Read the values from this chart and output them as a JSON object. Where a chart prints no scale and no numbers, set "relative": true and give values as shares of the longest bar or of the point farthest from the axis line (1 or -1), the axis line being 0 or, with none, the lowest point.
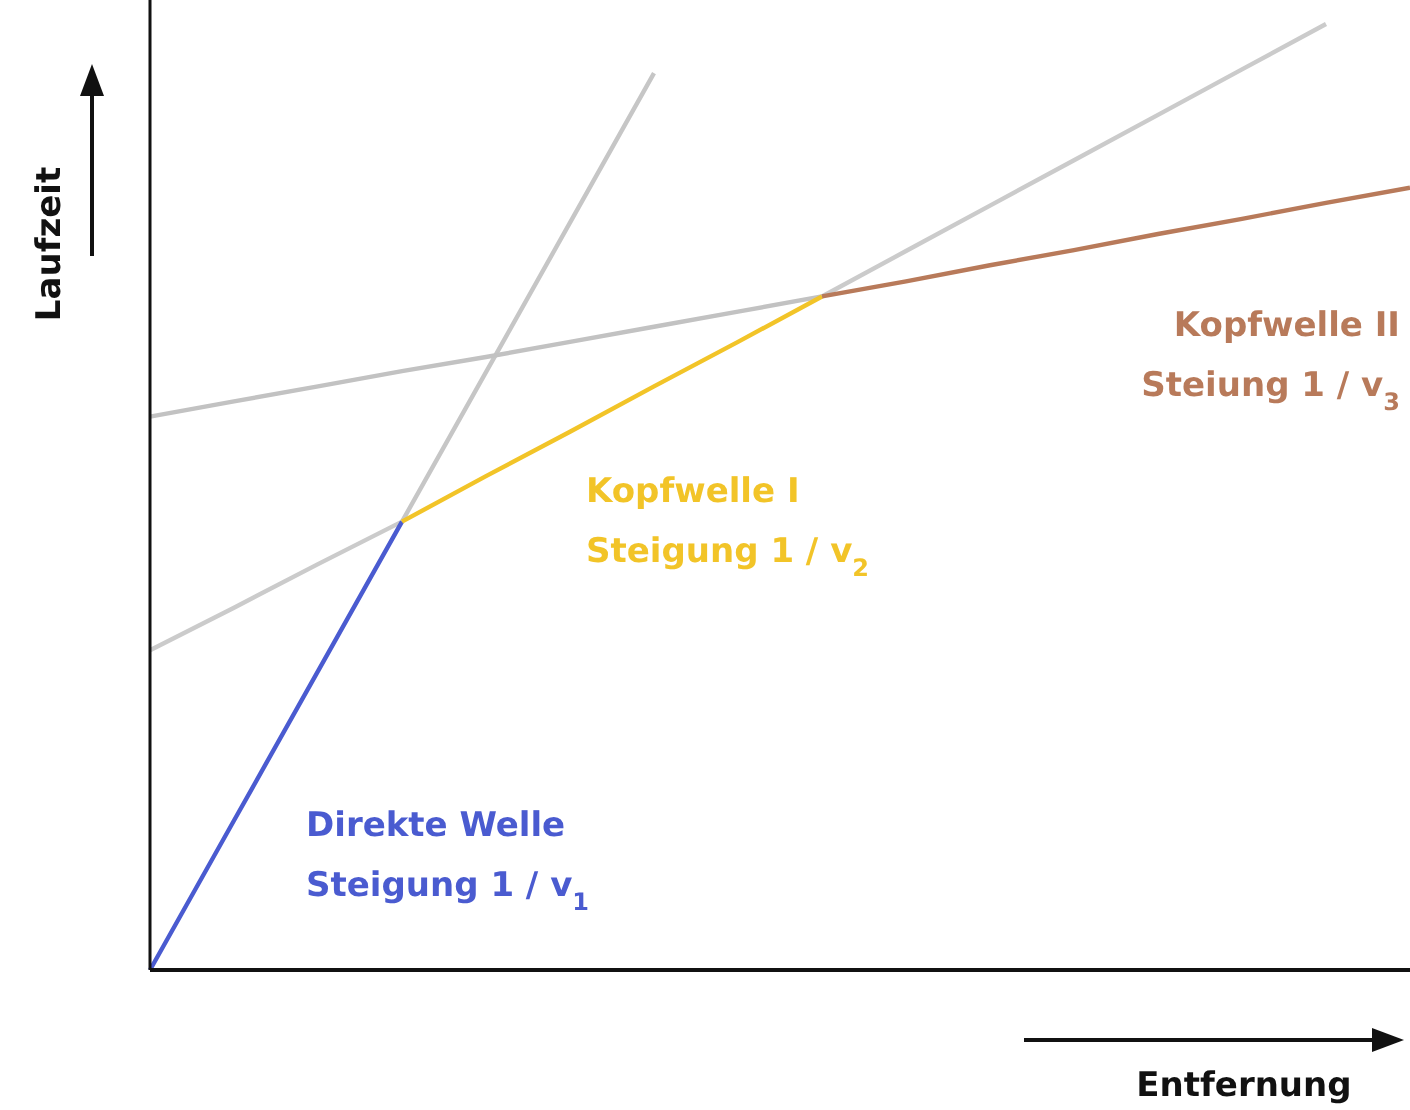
{
  "chart_data": {
    "type": "line",
    "relative": true,
    "ylabel": "Laufzeit",
    "xlabel": "Entfernung",
    "categories": [
      null,
      null,
      null,
      null,
      null,
      null,
      null,
      null,
      null,
      null,
      null,
      null,
      null,
      null,
      null,
      null
    ],
    "series": [
      {
        "color": "#c6c6c6",
        "values": [
          null,
          null,
          null,
          0.474,
          0.632,
          0.79,
          0.948,
          null,
          null,
          null,
          null,
          null,
          null,
          null,
          null,
          null
        ]
      },
      {
        "color": "#cbcbcb",
        "values": [
          0.338,
          0.383,
          0.429,
          0.474,
          null,
          null,
          null,
          null,
          0.712,
          0.76,
          0.808,
          0.856,
          0.904,
          0.952,
          1.0,
          null
        ]
      },
      {
        "color": "#c2c2c2",
        "values": [
          0.585,
          0.601,
          0.617,
          0.633,
          0.648,
          0.664,
          0.68,
          0.696,
          0.712,
          null,
          null,
          null,
          null,
          null,
          null,
          null
        ]
      },
      {
        "name": "Direkte Welle\nSteigung 1 / v$_{1}$",
        "color": "#4a5bd0",
        "values": [
          0,
          0.158,
          0.316,
          0.474,
          null,
          null,
          null,
          null,
          null,
          null,
          null,
          null,
          null,
          null,
          null,
          null
        ]
      },
      {
        "name": "Kopfwelle I\nSteigung 1 / v$_{2}$",
        "color": "#f2c428",
        "values": [
          null,
          null,
          null,
          0.474,
          0.522,
          0.569,
          0.617,
          0.664,
          0.712,
          null,
          null,
          null,
          null,
          null,
          null,
          null
        ]
      },
      {
        "name": "Kopfwelle II\nSteiung 1 / v$_{3}$",
        "color": "#b87a5a",
        "values": [
          null,
          null,
          null,
          null,
          null,
          null,
          null,
          null,
          0.712,
          0.728,
          0.745,
          0.761,
          0.778,
          0.794,
          0.811,
          0.827
        ]
      }
    ]
  }
}
